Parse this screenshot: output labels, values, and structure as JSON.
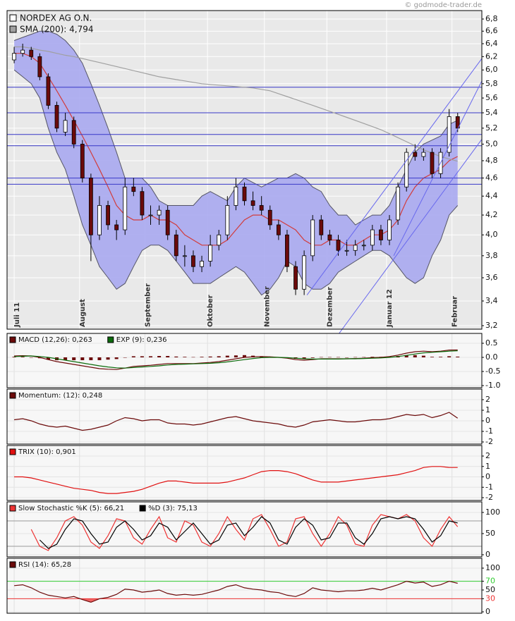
{
  "chart_data": [
    {
      "type": "candlestick",
      "title": "NORDEX AG O.N.",
      "source": "© godmode-trader.de",
      "x": [
        0,
        3,
        6,
        9,
        12,
        15,
        18,
        21,
        24,
        27,
        30,
        33,
        36,
        39,
        42,
        45,
        48,
        51,
        54,
        57,
        60,
        63,
        66,
        69,
        72,
        75,
        78,
        81,
        84,
        87,
        90,
        93,
        96,
        99,
        102,
        105,
        108,
        111,
        114,
        117,
        120,
        123,
        126,
        129,
        132,
        135,
        138,
        141,
        144,
        147,
        150,
        153,
        156
      ],
      "open": [
        6.15,
        6.25,
        6.3,
        6.2,
        5.9,
        5.5,
        5.15,
        5.3,
        5.0,
        4.6,
        4.0,
        4.3,
        4.1,
        4.05,
        4.5,
        4.45,
        4.2,
        4.2,
        4.25,
        4.0,
        3.8,
        3.8,
        3.7,
        3.75,
        3.9,
        4.0,
        4.3,
        4.5,
        4.35,
        4.3,
        4.25,
        4.1,
        4.0,
        3.7,
        3.5,
        3.8,
        4.15,
        4.0,
        3.95,
        3.85,
        3.85,
        3.9,
        3.9,
        4.05,
        3.95,
        4.15,
        4.5,
        4.9,
        4.85,
        4.9,
        4.65,
        4.9,
        5.35
      ],
      "high": [
        6.35,
        6.4,
        6.35,
        6.25,
        5.95,
        5.55,
        5.4,
        5.35,
        5.05,
        4.65,
        4.4,
        4.35,
        4.15,
        4.6,
        4.6,
        4.5,
        4.3,
        4.3,
        4.3,
        4.05,
        3.9,
        3.85,
        3.8,
        4.0,
        4.05,
        4.4,
        4.6,
        4.55,
        4.45,
        4.4,
        4.3,
        4.15,
        4.05,
        3.75,
        3.85,
        4.2,
        4.2,
        4.05,
        4.0,
        3.95,
        3.95,
        3.95,
        4.1,
        4.1,
        4.2,
        4.55,
        4.95,
        5.0,
        4.95,
        4.95,
        4.95,
        5.45,
        5.4
      ],
      "low": [
        6.1,
        6.2,
        6.15,
        5.85,
        5.45,
        5.15,
        5.1,
        4.95,
        4.55,
        3.75,
        3.95,
        4.05,
        3.95,
        4.0,
        4.4,
        4.15,
        4.1,
        4.1,
        3.95,
        3.75,
        3.7,
        3.65,
        3.65,
        3.7,
        3.85,
        3.95,
        4.25,
        4.3,
        4.25,
        4.2,
        4.05,
        3.95,
        3.65,
        3.45,
        3.45,
        3.75,
        3.95,
        3.9,
        3.8,
        3.8,
        3.8,
        3.85,
        3.85,
        3.9,
        3.9,
        4.1,
        4.45,
        4.8,
        4.8,
        4.6,
        4.6,
        4.85,
        5.15
      ],
      "close": [
        6.25,
        6.3,
        6.2,
        5.9,
        5.5,
        5.2,
        5.3,
        5.0,
        4.6,
        4.0,
        4.3,
        4.1,
        4.05,
        4.5,
        4.45,
        4.2,
        4.2,
        4.25,
        4.0,
        3.8,
        3.8,
        3.7,
        3.75,
        3.9,
        4.0,
        4.3,
        4.5,
        4.35,
        4.3,
        4.25,
        4.1,
        4.0,
        3.7,
        3.5,
        3.8,
        4.15,
        4.0,
        3.95,
        3.85,
        3.85,
        3.9,
        3.9,
        4.05,
        3.95,
        4.15,
        4.5,
        4.9,
        4.85,
        4.9,
        4.65,
        4.9,
        5.35,
        5.2
      ],
      "up_color": "#ffffff",
      "down_color": "#6b0a0a",
      "bollinger": {
        "fill": "#a9a9f0",
        "edge_color": "#555566",
        "middle_color": "#d23c3c",
        "upper": [
          6.45,
          6.5,
          6.55,
          6.6,
          6.6,
          6.55,
          6.45,
          6.3,
          6.1,
          5.8,
          5.5,
          5.2,
          4.9,
          4.6,
          4.6,
          4.6,
          4.5,
          4.35,
          4.3,
          4.3,
          4.3,
          4.3,
          4.4,
          4.45,
          4.4,
          4.35,
          4.5,
          4.6,
          4.55,
          4.5,
          4.55,
          4.6,
          4.6,
          4.65,
          4.6,
          4.5,
          4.45,
          4.3,
          4.2,
          4.2,
          4.1,
          4.15,
          4.2,
          4.2,
          4.3,
          4.5,
          4.7,
          4.9,
          5.0,
          5.05,
          5.1,
          5.25,
          5.3
        ],
        "middle": [
          6.25,
          6.25,
          6.2,
          6.1,
          5.9,
          5.7,
          5.5,
          5.3,
          5.1,
          4.9,
          4.7,
          4.5,
          4.3,
          4.2,
          4.15,
          4.15,
          4.2,
          4.15,
          4.15,
          4.1,
          4.0,
          3.95,
          3.9,
          3.9,
          3.9,
          3.95,
          4.05,
          4.15,
          4.2,
          4.2,
          4.15,
          4.15,
          4.1,
          4.05,
          3.95,
          3.9,
          3.9,
          3.95,
          3.95,
          3.9,
          3.9,
          3.95,
          4.0,
          4.0,
          4.05,
          4.15,
          4.35,
          4.5,
          4.6,
          4.65,
          4.7,
          4.8,
          4.85
        ],
        "lower": [
          6.0,
          5.9,
          5.8,
          5.6,
          5.2,
          4.9,
          4.7,
          4.4,
          4.1,
          3.9,
          3.7,
          3.6,
          3.5,
          3.55,
          3.7,
          3.85,
          3.9,
          3.9,
          3.85,
          3.75,
          3.65,
          3.55,
          3.55,
          3.55,
          3.6,
          3.65,
          3.7,
          3.65,
          3.55,
          3.45,
          3.5,
          3.6,
          3.75,
          3.7,
          3.55,
          3.5,
          3.5,
          3.55,
          3.65,
          3.7,
          3.75,
          3.8,
          3.85,
          3.85,
          3.8,
          3.7,
          3.6,
          3.55,
          3.6,
          3.8,
          3.95,
          4.2,
          4.3
        ]
      },
      "series": [
        {
          "name": "SMA (200): 4,794",
          "color": "#a0a0a0",
          "values": [
            6.35,
            6.35,
            6.33,
            6.3,
            6.28,
            6.25,
            6.22,
            6.2,
            6.17,
            6.14,
            6.11,
            6.08,
            6.05,
            6.02,
            5.99,
            5.96,
            5.93,
            5.9,
            5.88,
            5.86,
            5.84,
            5.82,
            5.8,
            5.79,
            5.78,
            5.77,
            5.76,
            5.75,
            5.74,
            5.72,
            5.7,
            5.66,
            5.62,
            5.58,
            5.54,
            5.5,
            5.46,
            5.42,
            5.38,
            5.34,
            5.3,
            5.26,
            5.22,
            5.18,
            5.13,
            5.08,
            5.03,
            4.98,
            4.93,
            4.89,
            4.85,
            4.82,
            4.794
          ]
        }
      ],
      "levels": [
        5.75,
        5.4,
        5.12,
        4.98,
        4.6,
        4.53
      ],
      "level_color": "#3838c8",
      "trendlines": [
        {
          "x": [
            103,
            164.5
          ],
          "y": [
            3.45,
            6.17
          ]
        },
        {
          "x": [
            133.5,
            164.5
          ],
          "y": [
            3.8,
            5.84
          ]
        },
        {
          "x": [
            103,
            164.5
          ],
          "y": [
            2.82,
            5.06
          ]
        }
      ],
      "trendline_color": "#6868ee",
      "log": true,
      "ylim": [
        3.2,
        6.8
      ],
      "yticks": [
        {
          "value": 3.2,
          "label": "3,2"
        },
        {
          "value": 3.4,
          "label": "3,4"
        },
        {
          "value": 3.6,
          "label": "3,6"
        },
        {
          "value": 3.8,
          "label": "3,8"
        },
        {
          "value": 4.0,
          "label": "4,0"
        },
        {
          "value": 4.2,
          "label": "4,2"
        },
        {
          "value": 4.4,
          "label": "4,4"
        },
        {
          "value": 4.6,
          "label": "4,6"
        },
        {
          "value": 4.8,
          "label": "4,8"
        },
        {
          "value": 5.0,
          "label": "5,0"
        },
        {
          "value": 5.2,
          "label": "5,2"
        },
        {
          "value": 5.4,
          "label": "5,4"
        },
        {
          "value": 5.6,
          "label": "5,6"
        },
        {
          "value": 5.8,
          "label": "5,8"
        },
        {
          "value": 6.0,
          "label": "6,0"
        },
        {
          "value": 6.2,
          "label": "6,2"
        },
        {
          "value": 6.4,
          "label": "6,4"
        },
        {
          "value": 6.6,
          "label": "6,6"
        },
        {
          "value": 6.8,
          "label": "6,8"
        }
      ],
      "xlim": [
        -2.5,
        164.5
      ],
      "xticks": [
        {
          "value": 0,
          "label": "Juli 11"
        },
        {
          "value": 23,
          "label": "August"
        },
        {
          "value": 46,
          "label": "September"
        },
        {
          "value": 68,
          "label": "Oktober"
        },
        {
          "value": 88,
          "label": "November"
        },
        {
          "value": 110,
          "label": "Dezember"
        },
        {
          "value": 131,
          "label": "Januar 12"
        },
        {
          "value": 154,
          "label": "Februar"
        }
      ]
    },
    {
      "type": "line",
      "series": [
        {
          "name": "MACD (12,26): 0,263",
          "color": "#6b0a0a",
          "values": [
            0.05,
            0.06,
            0.05,
            0.0,
            -0.08,
            -0.15,
            -0.2,
            -0.25,
            -0.3,
            -0.35,
            -0.4,
            -0.42,
            -0.43,
            -0.38,
            -0.32,
            -0.3,
            -0.28,
            -0.25,
            -0.22,
            -0.22,
            -0.22,
            -0.22,
            -0.2,
            -0.18,
            -0.15,
            -0.1,
            -0.05,
            0.0,
            0.02,
            0.03,
            0.02,
            0.0,
            -0.03,
            -0.08,
            -0.1,
            -0.08,
            -0.05,
            -0.05,
            -0.05,
            -0.05,
            -0.04,
            -0.03,
            -0.01,
            0.0,
            0.03,
            0.08,
            0.15,
            0.2,
            0.22,
            0.2,
            0.22,
            0.26,
            0.263
          ]
        },
        {
          "name": "EXP (9): 0,236",
          "color": "#0b6b0b",
          "values": [
            0.03,
            0.04,
            0.05,
            0.03,
            0.0,
            -0.05,
            -0.1,
            -0.15,
            -0.2,
            -0.25,
            -0.3,
            -0.34,
            -0.37,
            -0.38,
            -0.36,
            -0.34,
            -0.32,
            -0.3,
            -0.27,
            -0.25,
            -0.24,
            -0.23,
            -0.22,
            -0.21,
            -0.19,
            -0.16,
            -0.12,
            -0.08,
            -0.04,
            -0.01,
            0.0,
            0.0,
            -0.01,
            -0.03,
            -0.05,
            -0.06,
            -0.06,
            -0.06,
            -0.06,
            -0.05,
            -0.05,
            -0.04,
            -0.03,
            -0.02,
            0.0,
            0.03,
            0.07,
            0.12,
            0.16,
            0.18,
            0.2,
            0.22,
            0.236
          ]
        }
      ],
      "histogram": {
        "color": "#6b0a0a",
        "values": [
          0.02,
          0.02,
          0,
          -0.03,
          -0.08,
          -0.1,
          -0.1,
          -0.1,
          -0.1,
          -0.1,
          -0.1,
          -0.08,
          -0.06,
          0,
          0.04,
          0.04,
          0.04,
          0.05,
          0.05,
          0.03,
          0.02,
          0.01,
          0.02,
          0.03,
          0.04,
          0.06,
          0.07,
          0.08,
          0.06,
          0.04,
          0.02,
          0,
          -0.02,
          -0.05,
          -0.05,
          -0.02,
          0.01,
          0.01,
          0.01,
          0,
          0.01,
          0.01,
          0.02,
          0.02,
          0.03,
          0.05,
          0.08,
          0.08,
          0.06,
          0.02,
          0.02,
          0.04,
          0.027
        ]
      },
      "ylim": [
        -1.0,
        0.5
      ],
      "yticks": [
        0.5,
        {
          "value": 0.0,
          "label": "0.0"
        },
        -0.5,
        {
          "value": -1.0,
          "label": "-1.0"
        }
      ]
    },
    {
      "type": "line",
      "series": [
        {
          "name": "Momentum: (12): 0,248",
          "color": "#6b0a0a",
          "values": [
            0.1,
            0.2,
            0,
            -0.3,
            -0.5,
            -0.6,
            -0.5,
            -0.7,
            -0.9,
            -0.8,
            -0.6,
            -0.4,
            0.0,
            0.3,
            0.2,
            0.0,
            0.1,
            0.1,
            -0.2,
            -0.3,
            -0.3,
            -0.4,
            -0.3,
            -0.1,
            0.1,
            0.3,
            0.4,
            0.2,
            0.0,
            -0.1,
            -0.2,
            -0.3,
            -0.5,
            -0.6,
            -0.4,
            -0.1,
            0.0,
            0.1,
            0.0,
            -0.1,
            -0.1,
            0.0,
            0.1,
            0.1,
            0.2,
            0.4,
            0.6,
            0.5,
            0.6,
            0.3,
            0.5,
            0.8,
            0.248
          ]
        }
      ],
      "ylim": [
        -2,
        2
      ],
      "yticks": [
        2,
        1,
        0,
        -1,
        -2
      ]
    },
    {
      "type": "line",
      "series": [
        {
          "name": "TRIX (10): 0,901",
          "color": "#e01010",
          "values": [
            0.0,
            0.0,
            -0.1,
            -0.3,
            -0.5,
            -0.7,
            -0.9,
            -1.1,
            -1.2,
            -1.3,
            -1.5,
            -1.6,
            -1.6,
            -1.5,
            -1.4,
            -1.2,
            -0.9,
            -0.6,
            -0.4,
            -0.4,
            -0.5,
            -0.6,
            -0.6,
            -0.6,
            -0.6,
            -0.5,
            -0.3,
            -0.1,
            0.2,
            0.5,
            0.6,
            0.6,
            0.5,
            0.3,
            0.0,
            -0.3,
            -0.5,
            -0.5,
            -0.5,
            -0.4,
            -0.3,
            -0.2,
            -0.1,
            0.0,
            0.1,
            0.2,
            0.4,
            0.6,
            0.9,
            1.0,
            1.0,
            0.9,
            0.901
          ]
        }
      ],
      "ylim": [
        -2,
        2
      ],
      "yticks": [
        2,
        1,
        0,
        -1,
        -2
      ]
    },
    {
      "type": "line",
      "series": [
        {
          "name": "Slow Stochastic %K (5): 66,21",
          "color": "#ee3333",
          "values": [
            null,
            null,
            60,
            20,
            10,
            40,
            80,
            90,
            70,
            30,
            15,
            45,
            85,
            80,
            40,
            25,
            60,
            90,
            40,
            30,
            80,
            70,
            30,
            20,
            50,
            90,
            60,
            35,
            85,
            95,
            60,
            20,
            30,
            85,
            90,
            50,
            20,
            50,
            90,
            70,
            25,
            20,
            70,
            95,
            90,
            85,
            95,
            80,
            40,
            20,
            60,
            90,
            66.21
          ]
        },
        {
          "name": "%D (3): 75,13",
          "color": "#000000",
          "values": [
            null,
            null,
            null,
            35,
            15,
            25,
            60,
            85,
            80,
            50,
            25,
            30,
            65,
            80,
            60,
            35,
            45,
            75,
            65,
            35,
            55,
            75,
            50,
            25,
            35,
            70,
            75,
            45,
            65,
            90,
            75,
            35,
            25,
            65,
            85,
            70,
            35,
            40,
            75,
            75,
            40,
            25,
            50,
            85,
            90,
            85,
            90,
            85,
            60,
            30,
            45,
            80,
            75.13
          ]
        }
      ],
      "levels": [
        80,
        20
      ],
      "level_color": "#999999",
      "ylim": [
        0,
        100
      ],
      "yticks": [
        100,
        50,
        0
      ]
    },
    {
      "type": "line",
      "series": [
        {
          "name": "RSI (14): 65,28",
          "color": "#6b0a0a",
          "values": [
            60,
            62,
            55,
            45,
            38,
            35,
            32,
            35,
            28,
            22,
            30,
            33,
            40,
            52,
            50,
            45,
            47,
            50,
            42,
            38,
            40,
            38,
            40,
            45,
            50,
            58,
            62,
            55,
            52,
            50,
            46,
            44,
            38,
            35,
            42,
            55,
            50,
            48,
            46,
            48,
            48,
            50,
            54,
            50,
            56,
            62,
            70,
            66,
            68,
            58,
            62,
            70,
            65.28
          ]
        }
      ],
      "levels": [
        70,
        30
      ],
      "level_colors": [
        "#33cc33",
        "#ee3333"
      ],
      "ylim": [
        0,
        100
      ],
      "yticks": [
        100,
        70,
        50,
        30,
        0
      ]
    }
  ]
}
